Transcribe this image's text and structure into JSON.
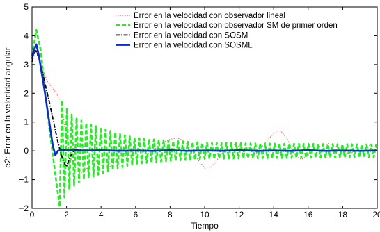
{
  "chart_data": {
    "type": "line",
    "title": "",
    "xlabel": "Tiempo",
    "ylabel": "e2: Error en la velocidad angular",
    "xlim": [
      0,
      20
    ],
    "ylim": [
      -2,
      5
    ],
    "xticks": [
      "0",
      "2",
      "4",
      "6",
      "8",
      "10",
      "12",
      "14",
      "16",
      "18",
      "20"
    ],
    "yticks": [
      "5",
      "4",
      "3",
      "2",
      "1",
      "0",
      "−1",
      "−2"
    ],
    "grid": false,
    "legend_position": "top-right",
    "series": [
      {
        "name": "Error en la velocidad con observador lineal",
        "color": "#ff5555",
        "style": "dotted",
        "x": [
          0,
          0.2,
          0.5,
          0.9,
          1.3,
          1.7,
          2.0,
          2.4,
          2.8,
          3.2,
          3.6,
          4.0,
          4.4,
          4.8,
          5.2,
          5.6,
          6.0,
          6.4,
          6.8,
          7.2,
          7.6,
          8.0,
          8.4,
          8.8,
          9.2,
          9.6,
          10.0,
          10.4,
          10.8,
          11.2,
          11.6,
          12.0,
          12.4,
          12.8,
          13.2,
          13.6,
          14.0,
          14.4,
          14.8,
          15.2,
          15.6,
          16.0,
          16.4,
          16.8,
          17.2,
          17.6,
          18.0,
          18.4,
          18.8,
          19.2,
          19.6,
          20.0
        ],
        "y": [
          3.3,
          3.5,
          3.0,
          2.4,
          2.1,
          1.7,
          0.4,
          -0.5,
          -0.8,
          -0.6,
          -0.3,
          -0.5,
          -0.6,
          -0.4,
          -0.1,
          -0.2,
          0.1,
          0.0,
          -0.1,
          0.1,
          0.3,
          0.4,
          0.45,
          0.35,
          0.1,
          -0.3,
          -0.6,
          -0.55,
          -0.25,
          0.05,
          0.25,
          0.15,
          -0.15,
          -0.2,
          0.05,
          0.35,
          0.6,
          0.7,
          0.4,
          -0.1,
          -0.3,
          -0.15,
          0.05,
          0.2,
          0.25,
          0.15,
          0.0,
          -0.1,
          0.0,
          0.1,
          0.2,
          0.1
        ]
      },
      {
        "name": "Error en la velocidad con observador SM de primer orden",
        "color": "#22ee22",
        "style": "dashed",
        "amplitude_x": [
          0,
          1.6,
          2.2,
          3.0,
          4.0,
          5.0,
          6.0,
          8.0,
          10.0,
          14.0,
          20.0
        ],
        "amplitude_y": [
          0.0,
          1.9,
          1.3,
          1.0,
          0.8,
          0.6,
          0.45,
          0.35,
          0.28,
          0.25,
          0.22
        ],
        "x": [
          0,
          0.25,
          0.5,
          1.0,
          1.6
        ],
        "y": [
          3.3,
          4.2,
          3.5,
          0.8,
          -1.95
        ]
      },
      {
        "name": "Error en la velocidad con SOSM",
        "color": "#000000",
        "style": "dashdot",
        "x": [
          0,
          0.15,
          0.25,
          0.5,
          1.0,
          1.5,
          1.8,
          2.0,
          2.2,
          2.5,
          3.0,
          4.0,
          6.0,
          8.0,
          10.0,
          12.0,
          14.0,
          16.0,
          18.0,
          20.0
        ],
        "y": [
          3.1,
          3.4,
          3.5,
          3.0,
          1.7,
          0.3,
          -0.35,
          -0.55,
          -0.2,
          0.05,
          0.02,
          0.0,
          0.0,
          0.0,
          0.0,
          0.0,
          0.0,
          0.0,
          0.0,
          0.0
        ]
      },
      {
        "name": "Error en la velocidad con SOSML",
        "color": "#0a28d6",
        "style": "solid",
        "x": [
          0,
          0.15,
          0.25,
          0.4,
          0.7,
          1.0,
          1.2,
          1.35,
          1.5,
          1.7,
          2.0,
          3.0,
          4.0,
          5.0,
          6.0,
          7.0,
          8.0,
          9.0,
          10.0,
          11.0,
          12.0,
          13.0,
          14.0,
          15.0,
          16.0,
          17.0,
          18.0,
          19.0,
          20.0
        ],
        "y": [
          3.2,
          3.55,
          3.7,
          3.3,
          2.2,
          1.0,
          0.2,
          -0.15,
          0.0,
          0.03,
          0.02,
          0.01,
          0.02,
          0.0,
          0.01,
          0.0,
          0.02,
          0.0,
          0.01,
          0.0,
          0.02,
          0.0,
          0.01,
          0.0,
          0.02,
          0.0,
          0.01,
          0.0,
          0.01
        ]
      }
    ]
  }
}
